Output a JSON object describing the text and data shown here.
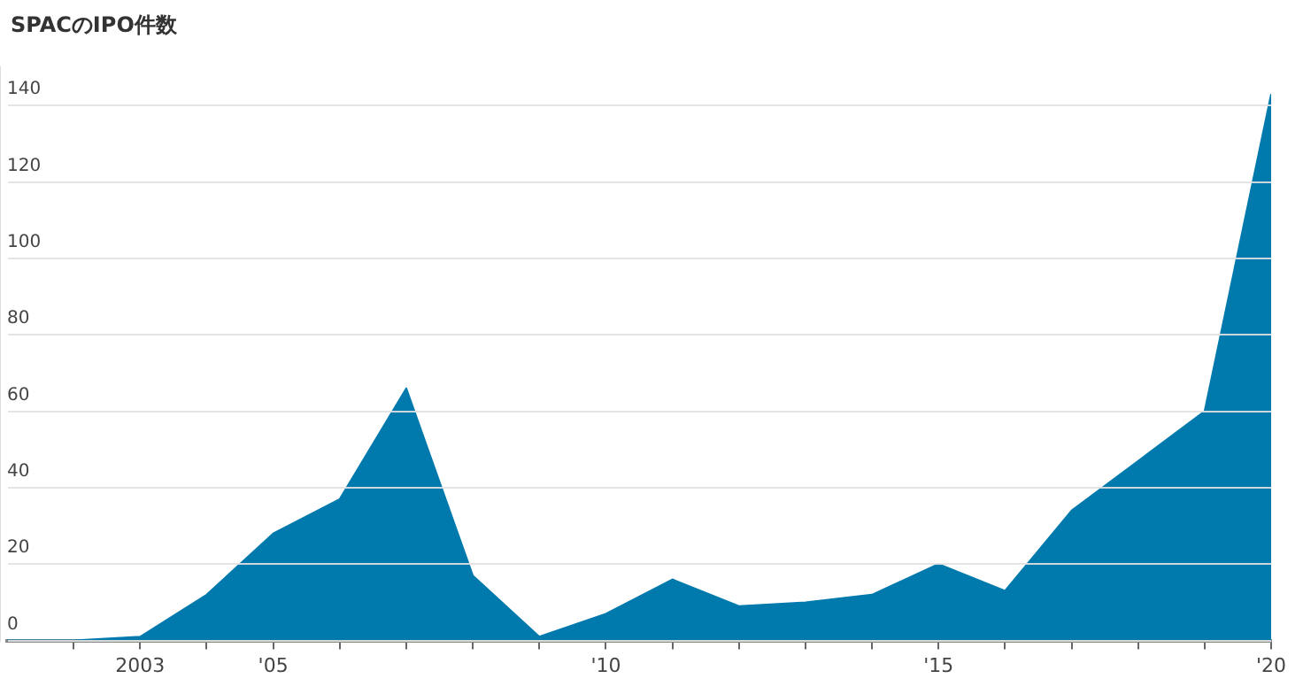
{
  "chart_data": {
    "type": "area",
    "title": "SPACのIPO件数",
    "x": [
      2001,
      2002,
      2003,
      2004,
      2005,
      2006,
      2007,
      2008,
      2009,
      2010,
      2011,
      2012,
      2013,
      2014,
      2015,
      2016,
      2017,
      2018,
      2019,
      2020
    ],
    "series": [
      {
        "color": "#0079ad",
        "values": [
          0,
          0,
          1,
          12,
          28,
          37,
          66,
          17,
          1,
          7,
          16,
          9,
          10,
          12,
          20,
          13,
          34,
          47,
          60,
          143
        ]
      }
    ],
    "xlim": [
      2001,
      2020
    ],
    "xticks": [
      {
        "value": 2002,
        "label": null
      },
      {
        "value": 2003,
        "label": "2003"
      },
      {
        "value": 2004,
        "label": null
      },
      {
        "value": 2005,
        "label": "'05"
      },
      {
        "value": 2006,
        "label": null
      },
      {
        "value": 2007,
        "label": null
      },
      {
        "value": 2008,
        "label": null
      },
      {
        "value": 2009,
        "label": null
      },
      {
        "value": 2010,
        "label": "'10"
      },
      {
        "value": 2011,
        "label": null
      },
      {
        "value": 2012,
        "label": null
      },
      {
        "value": 2013,
        "label": null
      },
      {
        "value": 2014,
        "label": null
      },
      {
        "value": 2015,
        "label": "'15"
      },
      {
        "value": 2016,
        "label": null
      },
      {
        "value": 2017,
        "label": null
      },
      {
        "value": 2018,
        "label": null
      },
      {
        "value": 2019,
        "label": null
      },
      {
        "value": 2020,
        "label": "'20"
      }
    ],
    "ylim": [
      0,
      150
    ],
    "yticks": [
      0,
      20,
      40,
      60,
      80,
      100,
      120,
      140
    ],
    "grid": "y",
    "legend": false
  }
}
